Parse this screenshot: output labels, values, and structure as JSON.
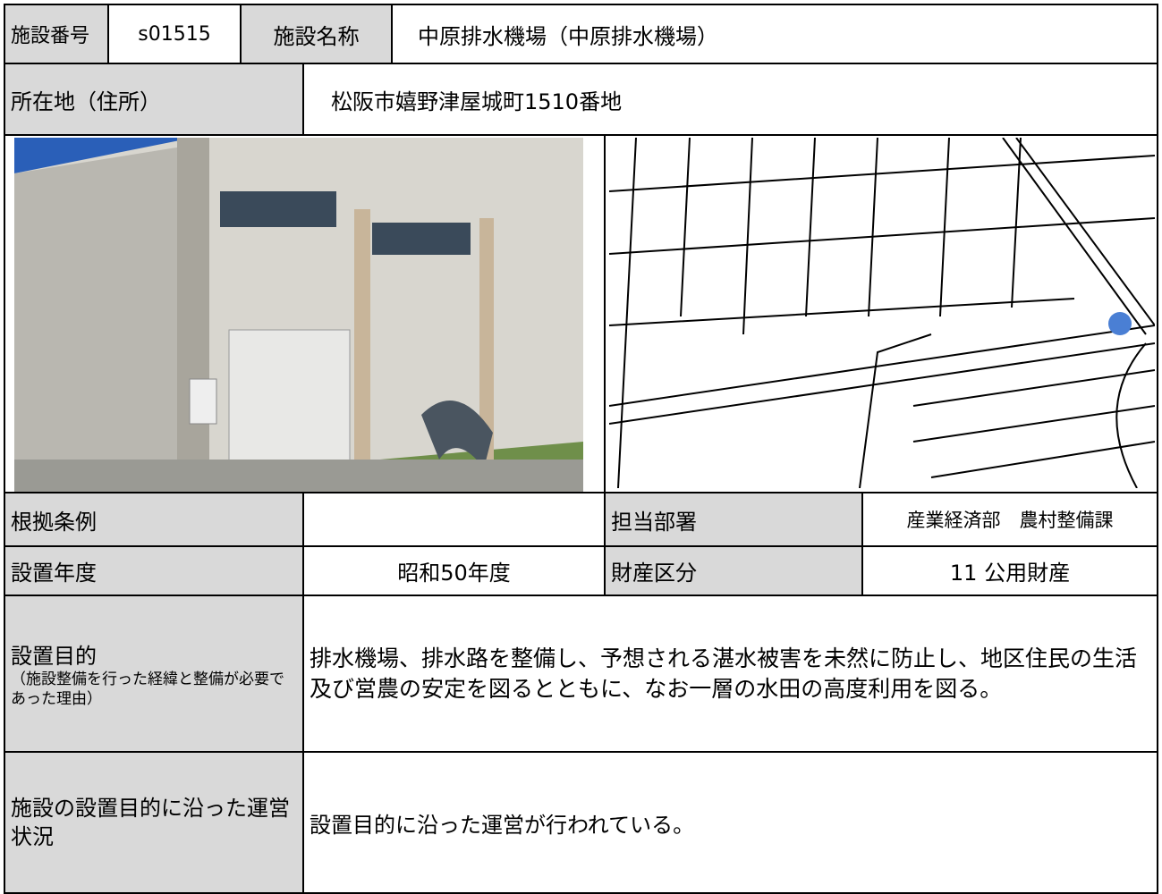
{
  "facility": {
    "number_label": "施設番号",
    "number": "s01515",
    "name_label": "施設名称",
    "name": "中原排水機場（中原排水機場）",
    "address_label": "所在地（住所）",
    "address": "松阪市嬉野津屋城町1510番地",
    "ordinance_label": "根拠条例",
    "department_label": "担当部署",
    "department": "産業経済部　農村整備課",
    "year_label": "設置年度",
    "year": "昭和50年度",
    "property_label": "財産区分",
    "property": "11 公用財産",
    "purpose_label": "設置目的",
    "purpose_note": "（施設整備を行った経緯と整備が必要であった理由）",
    "purpose": "排水機場、排水路を整備し、予想される湛水被害を未然に防止し、地区住民の生活及び営農の安定を図るとともに、なお一層の水田の高度利用を図る。",
    "operation_label": "施設の設置目的に沿った運営状況",
    "operation": "設置目的に沿った運営が行われている。"
  }
}
